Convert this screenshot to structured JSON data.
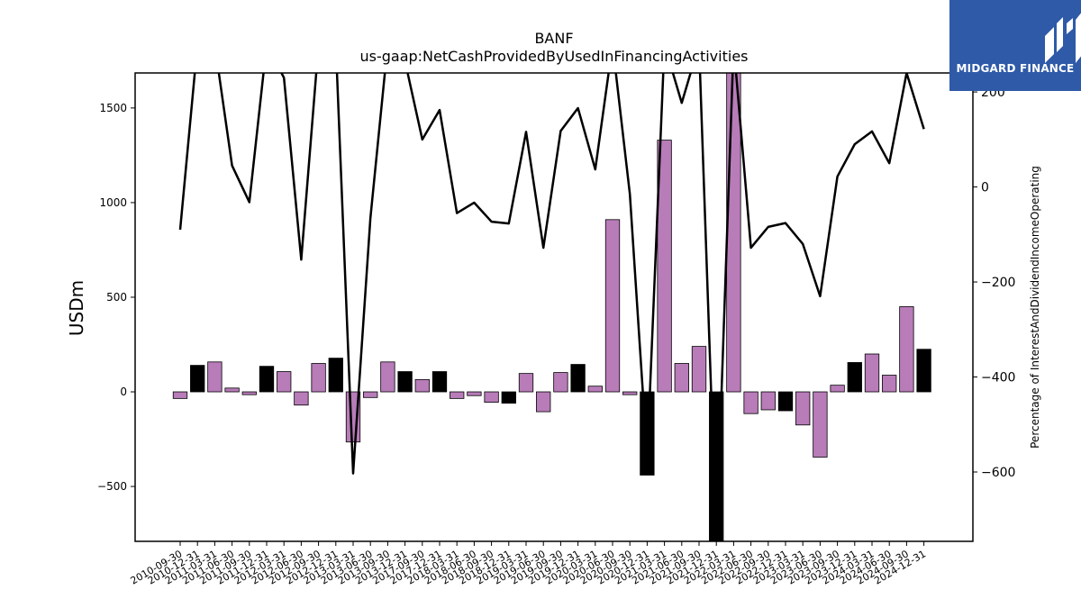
{
  "logo": {
    "text": "MIDGARD FINANCE",
    "background": "#2e5aa8"
  },
  "chart_data": {
    "type": "bar+line",
    "title": "BANF",
    "subtitle": "us-gaap:NetCashProvidedByUsedInFinancingActivities",
    "ylabel": "USDm",
    "y2label": "Percentage of InterestAndDividendIncomeOperating",
    "ylim": [
      -790,
      1685
    ],
    "y2lim": [
      -746,
      240
    ],
    "yticks": [
      -500,
      0,
      500,
      1000,
      1500
    ],
    "y2ticks": [
      -600,
      -400,
      -200,
      0,
      200
    ],
    "bar_colors": {
      "purple": "#b87cb9",
      "black": "#000000"
    },
    "line_color": "#000000",
    "categories": [
      "2010-09-30",
      "2010-12-31",
      "2011-03-31",
      "2011-06-30",
      "2011-09-30",
      "2011-12-31",
      "2012-03-31",
      "2012-06-30",
      "2012-09-30",
      "2012-12-31",
      "2013-03-31",
      "2013-06-30",
      "2013-09-30",
      "2013-12-31",
      "2017-09-30",
      "2017-12-31",
      "2018-03-31",
      "2018-06-30",
      "2018-09-30",
      "2018-12-31",
      "2019-03-31",
      "2019-06-30",
      "2019-09-30",
      "2019-12-31",
      "2020-03-31",
      "2020-06-30",
      "2020-09-30",
      "2020-12-31",
      "2021-03-31",
      "2021-06-30",
      "2021-09-30",
      "2021-12-31",
      "2022-03-31",
      "2022-06-30",
      "2022-09-30",
      "2022-12-31",
      "2023-03-31",
      "2023-06-30",
      "2023-09-30",
      "2023-12-31",
      "2024-03-31",
      "2024-06-30",
      "2024-09-30",
      "2024-12-31"
    ],
    "series": [
      {
        "kind": "bar",
        "values": [
          -35,
          140,
          158,
          20,
          -15,
          135,
          107,
          -70,
          150,
          178,
          -265,
          -30,
          158,
          107,
          65,
          107,
          -35,
          -20,
          -55,
          -60,
          97,
          -105,
          102,
          145,
          30,
          910,
          -15,
          -440,
          1330,
          150,
          240,
          -790,
          1685,
          -115,
          -95,
          -100,
          -175,
          -345,
          35,
          155,
          200,
          88,
          450,
          225
        ],
        "colors": [
          "purple",
          "black",
          "purple",
          "purple",
          "purple",
          "black",
          "purple",
          "purple",
          "purple",
          "black",
          "purple",
          "purple",
          "purple",
          "black",
          "purple",
          "black",
          "purple",
          "purple",
          "purple",
          "black",
          "purple",
          "purple",
          "purple",
          "black",
          "purple",
          "purple",
          "purple",
          "black",
          "purple",
          "purple",
          "purple",
          "black",
          "purple",
          "purple",
          "purple",
          "black",
          "purple",
          "purple",
          "purple",
          "black",
          "purple",
          "purple",
          "purple",
          "black"
        ]
      },
      {
        "kind": "line",
        "axis": "right",
        "values": [
          -90,
          300,
          300,
          45,
          -32,
          300,
          230,
          -153,
          300,
          300,
          -603,
          -65,
          300,
          265,
          100,
          162,
          -55,
          -33,
          -73,
          -77,
          116,
          -128,
          118,
          166,
          37,
          300,
          -15,
          -570,
          300,
          177,
          300,
          -746,
          300,
          -128,
          -84,
          -76,
          -120,
          -230,
          22,
          90,
          117,
          50,
          240,
          122
        ]
      }
    ]
  }
}
